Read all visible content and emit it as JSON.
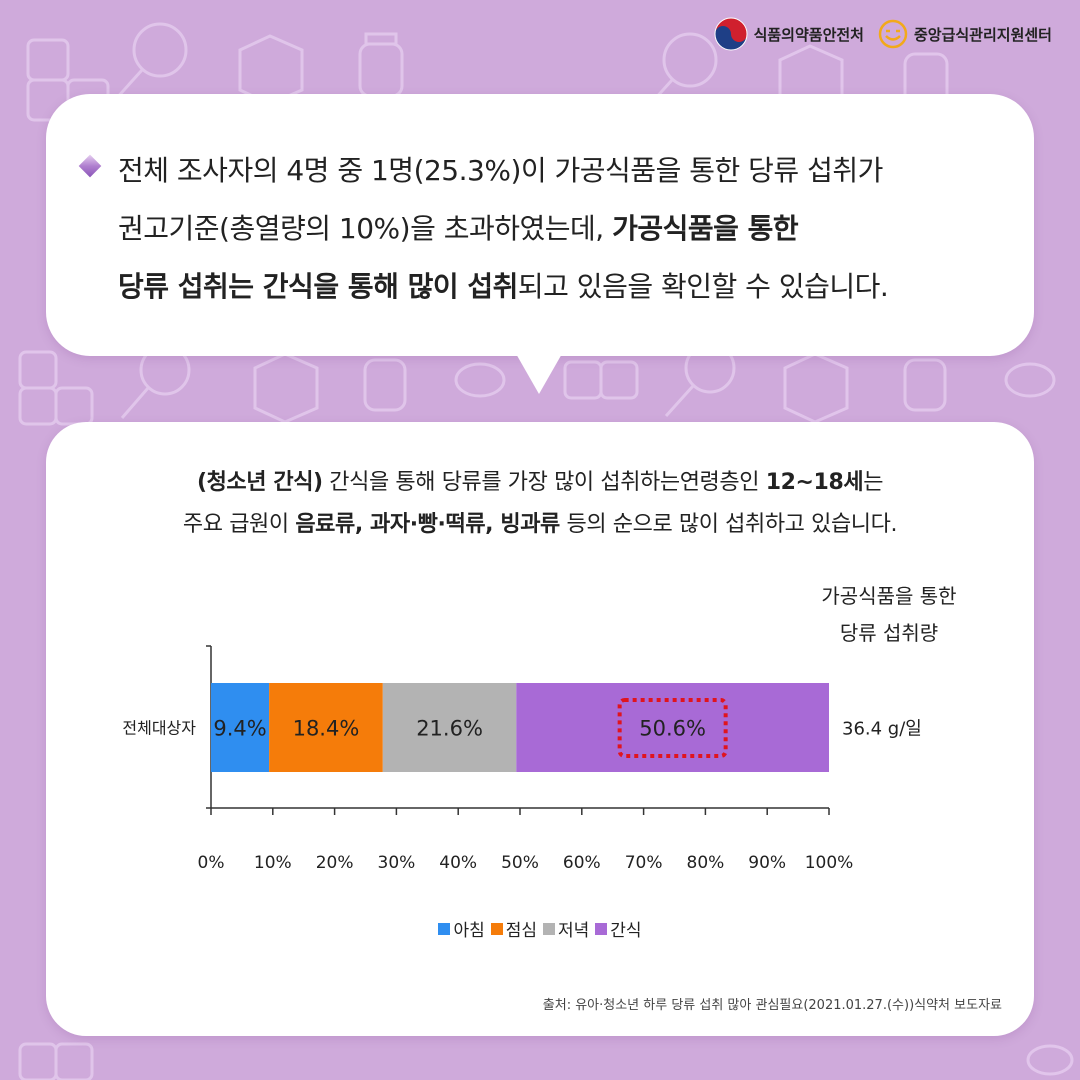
{
  "header": {
    "logo_left": "식품의약품안전처",
    "logo_right": "중앙급식관리지원센터"
  },
  "intro": {
    "line1": "전체 조사자의 4명 중 1명(25.3%)이 가공식품을 통한 당류 섭취가",
    "line2_plain": "권고기준(총열량의 10%)을 초과하였는데, ",
    "line2_bold": "가공식품을 통한",
    "line3_bold": "당류 섭취는 간식을 통해 많이 섭취",
    "line3_plain": "되고 있음을 확인할 수 있습니다."
  },
  "description": {
    "line1_bold1": "(청소년 간식)",
    "line1_plain1": " 간식을 통해 당류를 가장 많이 섭취하는연령층인 ",
    "line1_bold2": "12~18세",
    "line1_plain2": "는",
    "line2_plain1": "주요 급원이 ",
    "line2_bold": "음료류, 과자·빵·떡류, 빙과류",
    "line2_plain2": " 등의 순으로 많이 섭취하고 있습니다."
  },
  "chart_data": {
    "type": "bar",
    "orientation": "horizontal",
    "stacked": true,
    "categories": [
      "전체대상자"
    ],
    "series": [
      {
        "name": "아침",
        "values": [
          9.4
        ],
        "label": "9.4%",
        "color": "#2f8ef0"
      },
      {
        "name": "점심",
        "values": [
          18.4
        ],
        "label": "18.4%",
        "color": "#f57c0a"
      },
      {
        "name": "저녁",
        "values": [
          21.6
        ],
        "label": "21.6%",
        "color": "#b3b3b3"
      },
      {
        "name": "간식",
        "values": [
          50.6
        ],
        "label": "50.6%",
        "color": "#a86ad6",
        "highlighted": true
      }
    ],
    "xlim": [
      0,
      100
    ],
    "xticks": [
      "0%",
      "10%",
      "20%",
      "30%",
      "40%",
      "50%",
      "60%",
      "70%",
      "80%",
      "90%",
      "100%"
    ],
    "total_header_line1": "가공식품을 통한",
    "total_header_line2": "당류 섭취량",
    "total_value": "36.4 g/일",
    "legend_position": "bottom",
    "highlight_color": "#e0141e"
  },
  "source": "출처: 유아·청소년 하루 당류 섭취 많아 관심필요(2021.01.27.(수))식약처 보도자료",
  "colors": {
    "background": "#cfaadb",
    "accent_purple": "#a86ad6"
  }
}
